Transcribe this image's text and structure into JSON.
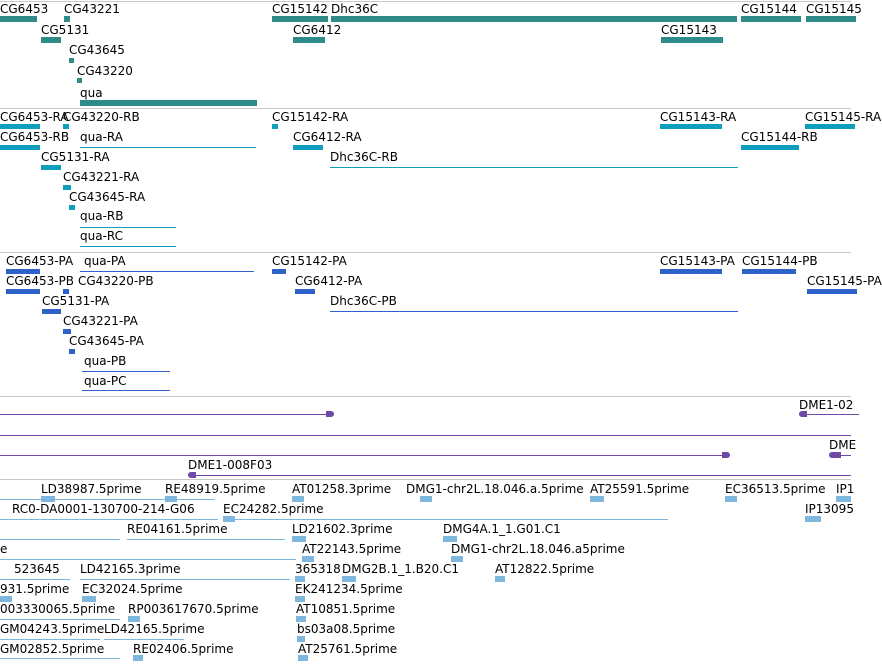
{
  "colors": {
    "gene": "#2e8b87",
    "transcript": "#0e9fbf",
    "protein": "#2f62c9",
    "clone": "#6d4aa8",
    "est": "#7fb6de",
    "separator": "#c8c8c8"
  },
  "tracks": [
    {
      "id": "genes",
      "color_key": "gene",
      "features": [
        {
          "name": "CG6453"
        },
        {
          "name": "CG43221"
        },
        {
          "name": "CG15142"
        },
        {
          "name": "Dhc36C"
        },
        {
          "name": "CG15144"
        },
        {
          "name": "CG15145"
        },
        {
          "name": "CG5131"
        },
        {
          "name": "CG6412"
        },
        {
          "name": "CG15143"
        },
        {
          "name": "CG43645"
        },
        {
          "name": "CG43220"
        },
        {
          "name": "qua"
        }
      ]
    },
    {
      "id": "transcripts",
      "color_key": "transcript",
      "features": [
        {
          "name": "CG6453-RA"
        },
        {
          "name": "CG43220-RB"
        },
        {
          "name": "CG15142-RA"
        },
        {
          "name": "CG15143-RA"
        },
        {
          "name": "CG15145-RA"
        },
        {
          "name": "CG6453-RB"
        },
        {
          "name": "qua-RA"
        },
        {
          "name": "CG6412-RA"
        },
        {
          "name": "CG15144-RB"
        },
        {
          "name": "CG5131-RA"
        },
        {
          "name": "Dhc36C-RB"
        },
        {
          "name": "CG43221-RA"
        },
        {
          "name": "CG43645-RA"
        },
        {
          "name": "qua-RB"
        },
        {
          "name": "qua-RC"
        }
      ]
    },
    {
      "id": "proteins",
      "color_key": "protein",
      "features": [
        {
          "name": "CG6453-PA"
        },
        {
          "name": "qua-PA"
        },
        {
          "name": "CG15142-PA"
        },
        {
          "name": "CG15143-PA"
        },
        {
          "name": "CG15144-PB"
        },
        {
          "name": "CG6453-PB"
        },
        {
          "name": "CG43220-PB"
        },
        {
          "name": "CG6412-PA"
        },
        {
          "name": "CG15145-PA"
        },
        {
          "name": "CG5131-PA"
        },
        {
          "name": "Dhc36C-PB"
        },
        {
          "name": "CG43221-PA"
        },
        {
          "name": "CG43645-PA"
        },
        {
          "name": "qua-PB"
        },
        {
          "name": "qua-PC"
        }
      ]
    },
    {
      "id": "clones",
      "color_key": "clone",
      "features": [
        {
          "name": "DME1-02"
        },
        {
          "name": ""
        },
        {
          "name": "DME"
        },
        {
          "name": "DME1-008F03"
        }
      ]
    },
    {
      "id": "ests",
      "color_key": "est",
      "features": [
        {
          "name": "LD38987.5prime"
        },
        {
          "name": "RE48919.5prime"
        },
        {
          "name": "AT01258.3prime"
        },
        {
          "name": "DMG1-chr2L.18.046.a.5prime"
        },
        {
          "name": "AT25591.5prime"
        },
        {
          "name": "EC36513.5prime"
        },
        {
          "name": "IP1"
        },
        {
          "name": "RC0-DA0001-130700-214-G06"
        },
        {
          "name": "EC24282.5prime"
        },
        {
          "name": "IP13095"
        },
        {
          "name": "RE04161.5prime"
        },
        {
          "name": "LD21602.3prime"
        },
        {
          "name": "DMG4A.1_1.G01.C1"
        },
        {
          "name": "e"
        },
        {
          "name": "AT22143.5prime"
        },
        {
          "name": "DMG1-chr2L.18.046.a5prime"
        },
        {
          "name": "523645"
        },
        {
          "name": "LD42165.3prime"
        },
        {
          "name": "365318"
        },
        {
          "name": "DMG2B.1_1.B20.C1"
        },
        {
          "name": "AT12822.5prime"
        },
        {
          "name": "931.5prime"
        },
        {
          "name": "EC32024.5prime"
        },
        {
          "name": "EK241234.5prime"
        },
        {
          "name": "003330065.5prime"
        },
        {
          "name": "RP003617670.5prime"
        },
        {
          "name": "AT10851.5prime"
        },
        {
          "name": "GM04243.5prime"
        },
        {
          "name": "LD42165.5prime"
        },
        {
          "name": "bs03a08.5prime"
        },
        {
          "name": "GM02852.5prime"
        },
        {
          "name": "RE02406.5prime"
        },
        {
          "name": "AT25761.5prime"
        }
      ]
    }
  ]
}
